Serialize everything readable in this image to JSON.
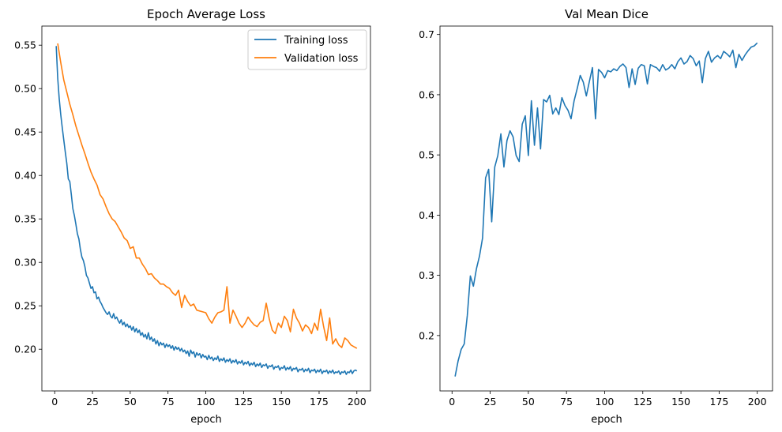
{
  "chart_data": [
    {
      "type": "line",
      "title": "Epoch Average Loss",
      "xlabel": "epoch",
      "ylabel": "",
      "xlim": [
        -8.5,
        209
      ],
      "ylim": [
        0.152,
        0.572
      ],
      "xticks": [
        0,
        25,
        50,
        75,
        100,
        125,
        150,
        175,
        200
      ],
      "yticks": [
        0.15,
        0.2,
        0.25,
        0.3,
        0.35,
        0.4,
        0.45,
        0.5,
        0.55
      ],
      "ytick_labels": [
        "0.15",
        "0.20",
        "0.25",
        "0.30",
        "0.35",
        "0.40",
        "0.45",
        "0.50",
        "0.55"
      ],
      "legend": "top-right",
      "grid": false,
      "series": [
        {
          "name": "Training loss",
          "color": "#1f77b4",
          "x": [
            1,
            2,
            3,
            4,
            5,
            6,
            7,
            8,
            9,
            10,
            11,
            12,
            13,
            14,
            15,
            16,
            17,
            18,
            19,
            20,
            21,
            22,
            23,
            24,
            25,
            26,
            27,
            28,
            29,
            30,
            31,
            32,
            33,
            34,
            35,
            36,
            37,
            38,
            39,
            40,
            41,
            42,
            43,
            44,
            45,
            46,
            47,
            48,
            49,
            50,
            51,
            52,
            53,
            54,
            55,
            56,
            57,
            58,
            59,
            60,
            61,
            62,
            63,
            64,
            65,
            66,
            67,
            68,
            69,
            70,
            71,
            72,
            73,
            74,
            75,
            76,
            77,
            78,
            79,
            80,
            81,
            82,
            83,
            84,
            85,
            86,
            87,
            88,
            89,
            90,
            91,
            92,
            93,
            94,
            95,
            96,
            97,
            98,
            99,
            100,
            101,
            102,
            103,
            104,
            105,
            106,
            107,
            108,
            109,
            110,
            111,
            112,
            113,
            114,
            115,
            116,
            117,
            118,
            119,
            120,
            121,
            122,
            123,
            124,
            125,
            126,
            127,
            128,
            129,
            130,
            131,
            132,
            133,
            134,
            135,
            136,
            137,
            138,
            139,
            140,
            141,
            142,
            143,
            144,
            145,
            146,
            147,
            148,
            149,
            150,
            151,
            152,
            153,
            154,
            155,
            156,
            157,
            158,
            159,
            160,
            161,
            162,
            163,
            164,
            165,
            166,
            167,
            168,
            169,
            170,
            171,
            172,
            173,
            174,
            175,
            176,
            177,
            178,
            179,
            180,
            181,
            182,
            183,
            184,
            185,
            186,
            187,
            188,
            189,
            190,
            191,
            192,
            193,
            194,
            195,
            196,
            197,
            198,
            199,
            200
          ],
          "y": [
            0.549,
            0.512,
            0.488,
            0.47,
            0.455,
            0.441,
            0.427,
            0.414,
            0.396,
            0.393,
            0.378,
            0.362,
            0.354,
            0.344,
            0.333,
            0.327,
            0.315,
            0.306,
            0.302,
            0.295,
            0.285,
            0.282,
            0.276,
            0.27,
            0.272,
            0.265,
            0.266,
            0.258,
            0.26,
            0.255,
            0.252,
            0.248,
            0.245,
            0.242,
            0.24,
            0.243,
            0.238,
            0.236,
            0.241,
            0.235,
            0.237,
            0.233,
            0.23,
            0.234,
            0.228,
            0.231,
            0.226,
            0.229,
            0.225,
            0.227,
            0.222,
            0.226,
            0.22,
            0.224,
            0.219,
            0.222,
            0.216,
            0.219,
            0.214,
            0.217,
            0.212,
            0.219,
            0.211,
            0.214,
            0.209,
            0.212,
            0.206,
            0.21,
            0.204,
            0.208,
            0.205,
            0.207,
            0.202,
            0.206,
            0.203,
            0.205,
            0.201,
            0.204,
            0.199,
            0.203,
            0.2,
            0.202,
            0.198,
            0.201,
            0.197,
            0.199,
            0.195,
            0.198,
            0.192,
            0.199,
            0.195,
            0.197,
            0.191,
            0.196,
            0.193,
            0.195,
            0.19,
            0.194,
            0.191,
            0.192,
            0.188,
            0.193,
            0.189,
            0.191,
            0.187,
            0.19,
            0.188,
            0.192,
            0.186,
            0.189,
            0.187,
            0.19,
            0.185,
            0.188,
            0.186,
            0.189,
            0.184,
            0.187,
            0.185,
            0.188,
            0.183,
            0.186,
            0.184,
            0.187,
            0.182,
            0.185,
            0.183,
            0.186,
            0.181,
            0.184,
            0.182,
            0.185,
            0.18,
            0.183,
            0.181,
            0.184,
            0.179,
            0.182,
            0.181,
            0.183,
            0.178,
            0.181,
            0.18,
            0.182,
            0.177,
            0.18,
            0.179,
            0.181,
            0.176,
            0.179,
            0.178,
            0.181,
            0.176,
            0.179,
            0.177,
            0.18,
            0.175,
            0.178,
            0.177,
            0.179,
            0.174,
            0.177,
            0.176,
            0.178,
            0.174,
            0.177,
            0.175,
            0.178,
            0.173,
            0.176,
            0.175,
            0.177,
            0.173,
            0.176,
            0.174,
            0.177,
            0.172,
            0.175,
            0.174,
            0.176,
            0.172,
            0.175,
            0.173,
            0.176,
            0.172,
            0.174,
            0.173,
            0.175,
            0.171,
            0.174,
            0.173,
            0.175,
            0.171,
            0.174,
            0.173,
            0.176,
            0.172,
            0.175,
            0.176,
            0.175
          ]
        },
        {
          "name": "Validation loss",
          "color": "#ff7f0e",
          "x": [
            2,
            4,
            6,
            8,
            10,
            12,
            14,
            16,
            18,
            20,
            22,
            24,
            26,
            28,
            30,
            32,
            34,
            36,
            38,
            40,
            42,
            44,
            46,
            48,
            50,
            52,
            54,
            56,
            58,
            60,
            62,
            64,
            66,
            68,
            70,
            72,
            74,
            76,
            78,
            80,
            82,
            84,
            86,
            88,
            90,
            92,
            94,
            96,
            98,
            100,
            102,
            104,
            106,
            108,
            110,
            112,
            114,
            116,
            118,
            120,
            122,
            124,
            126,
            128,
            130,
            132,
            134,
            136,
            138,
            140,
            142,
            144,
            146,
            148,
            150,
            152,
            154,
            156,
            158,
            160,
            162,
            164,
            166,
            168,
            170,
            172,
            174,
            176,
            178,
            180,
            182,
            184,
            186,
            188,
            190,
            192,
            194,
            196,
            198,
            200
          ],
          "y": [
            0.552,
            0.53,
            0.51,
            0.496,
            0.482,
            0.47,
            0.457,
            0.446,
            0.435,
            0.425,
            0.414,
            0.404,
            0.396,
            0.389,
            0.378,
            0.373,
            0.364,
            0.356,
            0.35,
            0.347,
            0.341,
            0.335,
            0.328,
            0.325,
            0.316,
            0.318,
            0.305,
            0.305,
            0.298,
            0.293,
            0.286,
            0.287,
            0.282,
            0.279,
            0.275,
            0.275,
            0.272,
            0.27,
            0.265,
            0.262,
            0.268,
            0.248,
            0.262,
            0.255,
            0.25,
            0.252,
            0.245,
            0.244,
            0.243,
            0.242,
            0.235,
            0.23,
            0.237,
            0.242,
            0.243,
            0.245,
            0.272,
            0.23,
            0.245,
            0.238,
            0.23,
            0.225,
            0.23,
            0.237,
            0.232,
            0.228,
            0.226,
            0.231,
            0.233,
            0.253,
            0.235,
            0.222,
            0.218,
            0.23,
            0.225,
            0.238,
            0.233,
            0.22,
            0.246,
            0.236,
            0.23,
            0.221,
            0.228,
            0.225,
            0.218,
            0.23,
            0.222,
            0.246,
            0.226,
            0.21,
            0.236,
            0.206,
            0.212,
            0.205,
            0.202,
            0.213,
            0.21,
            0.205,
            0.203,
            0.201
          ]
        }
      ]
    },
    {
      "type": "line",
      "title": "Val Mean Dice",
      "xlabel": "epoch",
      "ylabel": "",
      "xlim": [
        -7.9,
        210
      ],
      "ylim": [
        0.108,
        0.714
      ],
      "xticks": [
        0,
        25,
        50,
        75,
        100,
        125,
        150,
        175,
        200
      ],
      "yticks": [
        0.2,
        0.3,
        0.4,
        0.5,
        0.6,
        0.7
      ],
      "ytick_labels": [
        "0.2",
        "0.3",
        "0.4",
        "0.5",
        "0.6",
        "0.7"
      ],
      "grid": false,
      "series": [
        {
          "color": "#1f77b4",
          "x": [
            2,
            4,
            6,
            8,
            10,
            12,
            14,
            16,
            18,
            20,
            22,
            24,
            26,
            28,
            30,
            32,
            34,
            36,
            38,
            40,
            42,
            44,
            46,
            48,
            50,
            52,
            54,
            56,
            58,
            60,
            62,
            64,
            66,
            68,
            70,
            72,
            74,
            76,
            78,
            80,
            82,
            84,
            86,
            88,
            90,
            92,
            94,
            96,
            98,
            100,
            102,
            104,
            106,
            108,
            110,
            112,
            114,
            116,
            118,
            120,
            122,
            124,
            126,
            128,
            130,
            132,
            134,
            136,
            138,
            140,
            142,
            144,
            146,
            148,
            150,
            152,
            154,
            156,
            158,
            160,
            162,
            164,
            166,
            168,
            170,
            172,
            174,
            176,
            178,
            180,
            182,
            184,
            186,
            188,
            190,
            192,
            194,
            196,
            198,
            200
          ],
          "y": [
            0.132,
            0.158,
            0.177,
            0.186,
            0.233,
            0.299,
            0.282,
            0.311,
            0.332,
            0.362,
            0.462,
            0.476,
            0.389,
            0.48,
            0.499,
            0.535,
            0.48,
            0.524,
            0.54,
            0.53,
            0.499,
            0.489,
            0.551,
            0.565,
            0.499,
            0.59,
            0.516,
            0.578,
            0.51,
            0.592,
            0.588,
            0.599,
            0.568,
            0.578,
            0.567,
            0.595,
            0.582,
            0.574,
            0.56,
            0.59,
            0.61,
            0.632,
            0.621,
            0.598,
            0.622,
            0.645,
            0.56,
            0.642,
            0.637,
            0.628,
            0.64,
            0.638,
            0.643,
            0.64,
            0.647,
            0.651,
            0.645,
            0.612,
            0.643,
            0.617,
            0.644,
            0.65,
            0.648,
            0.618,
            0.65,
            0.647,
            0.645,
            0.639,
            0.65,
            0.641,
            0.644,
            0.65,
            0.643,
            0.655,
            0.661,
            0.651,
            0.655,
            0.665,
            0.66,
            0.648,
            0.656,
            0.62,
            0.66,
            0.672,
            0.654,
            0.661,
            0.665,
            0.66,
            0.672,
            0.668,
            0.663,
            0.674,
            0.645,
            0.667,
            0.657,
            0.666,
            0.673,
            0.679,
            0.681,
            0.686
          ]
        }
      ]
    }
  ]
}
